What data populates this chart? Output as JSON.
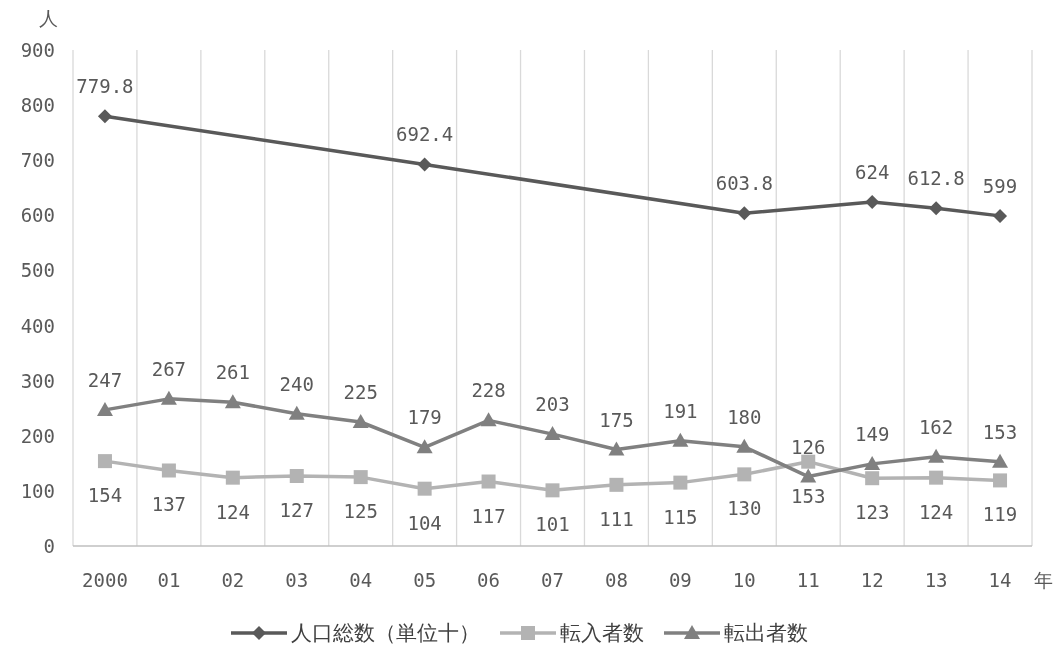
{
  "chart_data": {
    "type": "line",
    "xlabel": "年",
    "ylabel": "人",
    "categories": [
      "2000",
      "01",
      "02",
      "03",
      "04",
      "05",
      "06",
      "07",
      "08",
      "09",
      "10",
      "11",
      "12",
      "13",
      "14"
    ],
    "series": [
      {
        "name": "人口総数（単位十）",
        "color": "#595959",
        "marker": "diamond",
        "values": [
          779.8,
          null,
          null,
          null,
          null,
          692.4,
          null,
          null,
          null,
          null,
          603.8,
          null,
          624,
          612.8,
          599
        ]
      },
      {
        "name": "転入者数",
        "color": "#b3b3b3",
        "marker": "square",
        "values": [
          154,
          137,
          124,
          127,
          125,
          104,
          117,
          101,
          111,
          115,
          130,
          153,
          123,
          124,
          119
        ]
      },
      {
        "name": "転出者数",
        "color": "#808080",
        "marker": "triangle",
        "values": [
          247,
          267,
          261,
          240,
          225,
          179,
          228,
          203,
          175,
          191,
          180,
          126,
          149,
          162,
          153
        ]
      }
    ],
    "ylim": [
      0,
      900
    ],
    "yticks": [
      0,
      100,
      200,
      300,
      400,
      500,
      600,
      700,
      800,
      900
    ],
    "grid": "x",
    "legend": "bottom",
    "data_labels": true,
    "line_style": "solid"
  }
}
